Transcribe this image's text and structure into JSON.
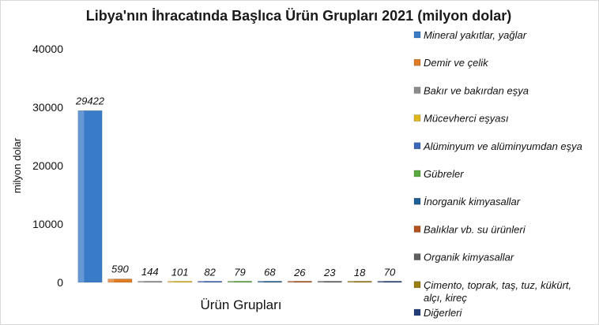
{
  "chart_data": {
    "type": "bar",
    "title": "Libya'nın İhracatında Başlıca Ürün Grupları 2021 (milyon dolar)",
    "xlabel": "Ürün Grupları",
    "ylabel": "milyon dolar",
    "ylim": [
      0,
      40000
    ],
    "yticks": [
      "0",
      "10000",
      "20000",
      "30000",
      "40000"
    ],
    "grid": false,
    "legend_position": "right",
    "categories": [
      "Mineral yakıtlar, yağlar",
      "Demir ve çelik",
      "Bakır ve bakırdan eşya",
      "Mücevherci eşyası",
      "Alüminyum ve alüminyumdan eşya",
      "Gübreler",
      "İnorganik kimyasallar",
      "Balıklar vb. su ürünleri",
      "Organik kimyasallar",
      "Çimento, toprak, taş, tuz, kükürt, alçı, kireç",
      "Diğerleri"
    ],
    "values": [
      29422,
      590,
      144,
      101,
      82,
      79,
      68,
      26,
      23,
      18,
      70
    ],
    "colors": [
      "#3a7bc8",
      "#e07b25",
      "#8c8c8c",
      "#e0b81c",
      "#3b68b8",
      "#5aa83f",
      "#1f5e96",
      "#b3521e",
      "#5f5f5f",
      "#9c7d10",
      "#233e7a"
    ],
    "legend_lines": [
      [
        "Mineral yakıtlar, yağlar"
      ],
      [
        "Demir ve çelik"
      ],
      [
        "Bakır ve bakırdan eşya"
      ],
      [
        "Mücevherci eşyası"
      ],
      [
        "Alüminyum ve alüminyumdan eşya"
      ],
      [
        "Gübreler"
      ],
      [
        "İnorganik kimyasallar"
      ],
      [
        "Balıklar vb. su ürünleri"
      ],
      [
        "Organik kimyasallar"
      ],
      [
        "Çimento, toprak, taş, tuz, kükürt,",
        "alçı, kireç"
      ],
      [
        "Diğerleri"
      ]
    ]
  }
}
